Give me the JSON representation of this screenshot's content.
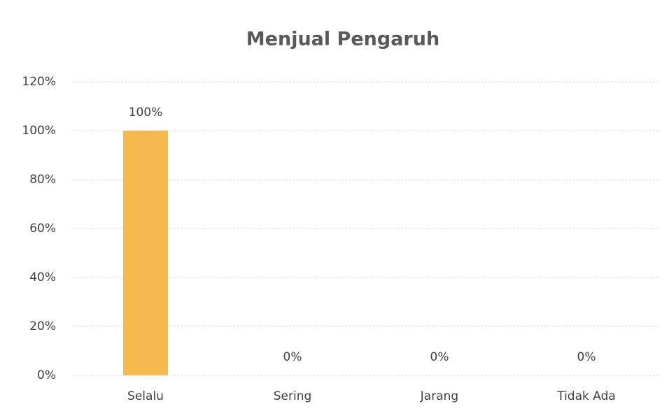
{
  "chart_data": {
    "type": "bar",
    "title": "Menjual Pengaruh",
    "categories": [
      "Selalu",
      "Sering",
      "Jarang",
      "Tidak Ada"
    ],
    "values": [
      100,
      0,
      0,
      0
    ],
    "value_labels": [
      "100%",
      "0%",
      "0%",
      "0%"
    ],
    "color": "#f5b94f",
    "ylim": [
      0,
      120
    ],
    "yticks": [
      {
        "value": 0,
        "label": "0%"
      },
      {
        "value": 20,
        "label": "20%"
      },
      {
        "value": 40,
        "label": "40%"
      },
      {
        "value": 60,
        "label": "60%"
      },
      {
        "value": 80,
        "label": "80%"
      },
      {
        "value": 100,
        "label": "100%"
      },
      {
        "value": 120,
        "label": "120%"
      }
    ],
    "grid": true
  }
}
